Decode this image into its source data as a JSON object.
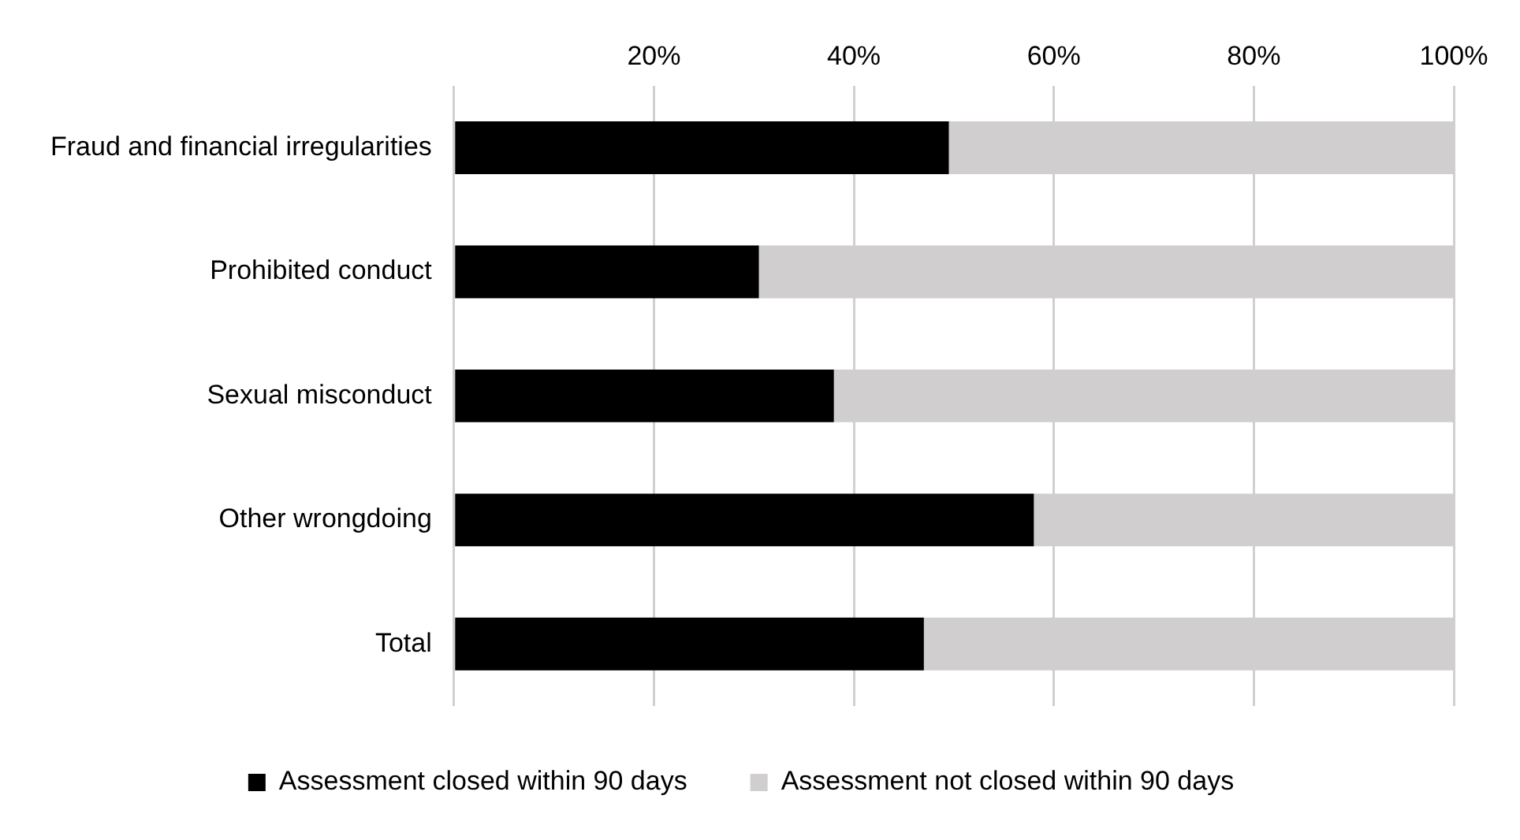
{
  "chart_data": {
    "type": "bar",
    "orientation": "horizontal",
    "stacked": true,
    "categories": [
      "Fraud and financial irregularities",
      "Prohibited conduct",
      "Sexual misconduct",
      "Other wrongdoing",
      "Total"
    ],
    "series": [
      {
        "name": "Assessment closed within 90 days",
        "color": "#000000",
        "values": [
          49.5,
          30.5,
          38,
          58,
          47
        ]
      },
      {
        "name": "Assessment not closed within 90 days",
        "color": "#d0cecf",
        "values": [
          50.5,
          69.5,
          62,
          42,
          53
        ]
      }
    ],
    "xlim": [
      0,
      100
    ],
    "xticks": [
      {
        "value": 0,
        "label": null
      },
      {
        "value": 20,
        "label": "20%"
      },
      {
        "value": 40,
        "label": "40%"
      },
      {
        "value": 60,
        "label": "60%"
      },
      {
        "value": 80,
        "label": "80%"
      },
      {
        "value": 100,
        "label": "100%"
      }
    ],
    "grid": "x",
    "legend": "bottom"
  }
}
